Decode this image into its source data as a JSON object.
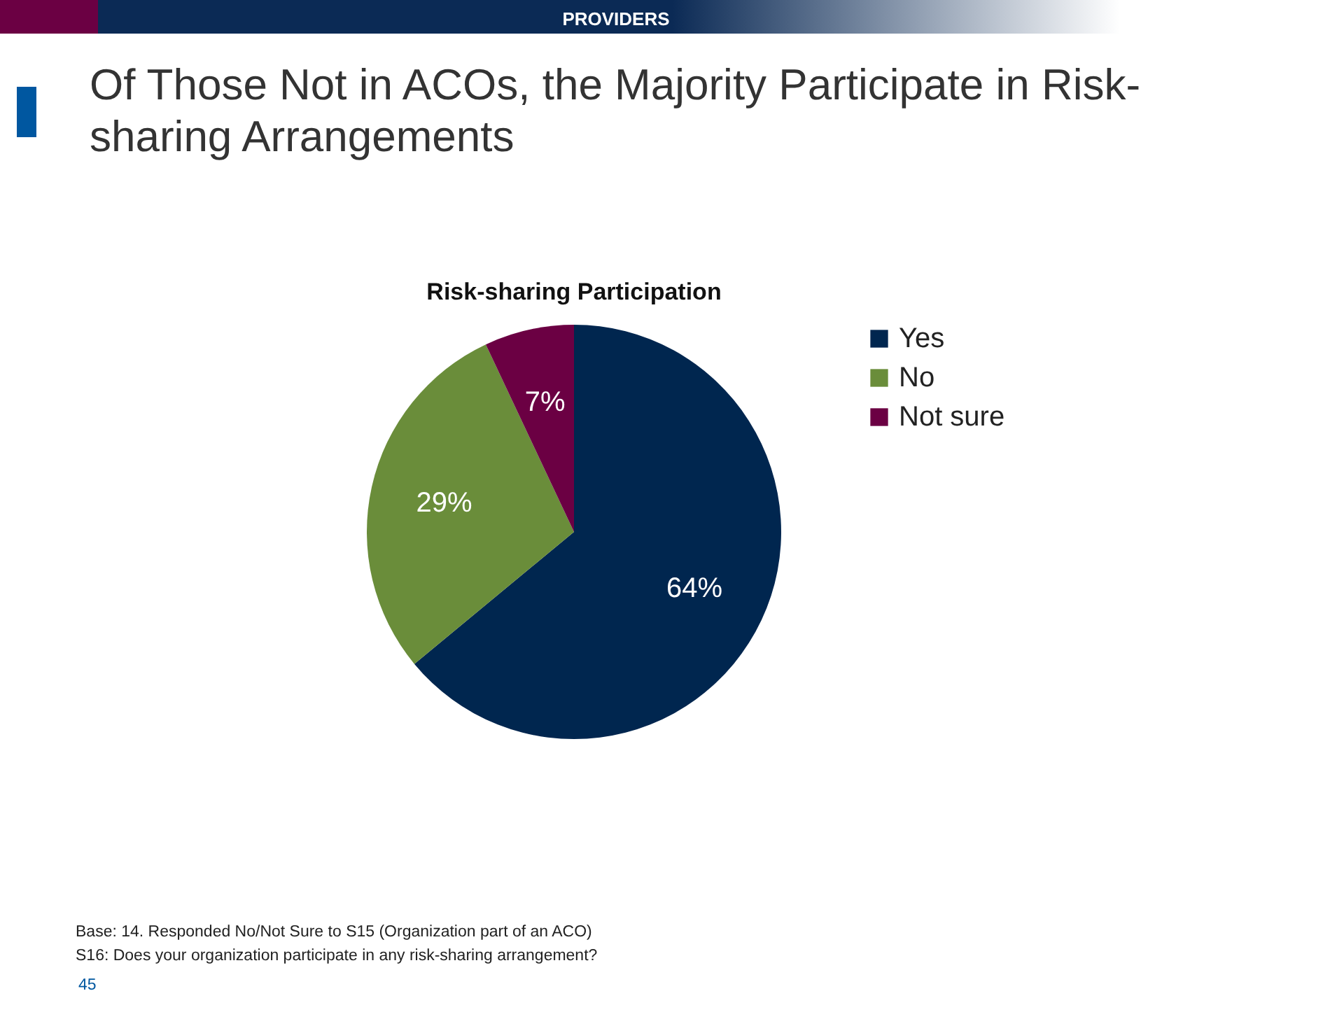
{
  "chart_data": {
    "type": "pie",
    "title": "Of Those Not in ACOs, the Majority Participate in Risk-sharing Arrangements",
    "subtitle": "Risk-sharing Participation",
    "categories": [
      "Yes",
      "No",
      "Not sure"
    ],
    "values": [
      64,
      29,
      7
    ],
    "colors": [
      "#00264f",
      "#6a8d3a",
      "#6b0043"
    ],
    "value_labels": [
      "64%",
      "29%",
      "7%"
    ],
    "legend": "right",
    "annotations": [
      "PROVIDERS",
      "Base: 14. Responded No/Not Sure to S15 (Organization part of an ACO)",
      "S16: Does your organization participate in any risk-sharing arrangement?",
      "45"
    ]
  }
}
